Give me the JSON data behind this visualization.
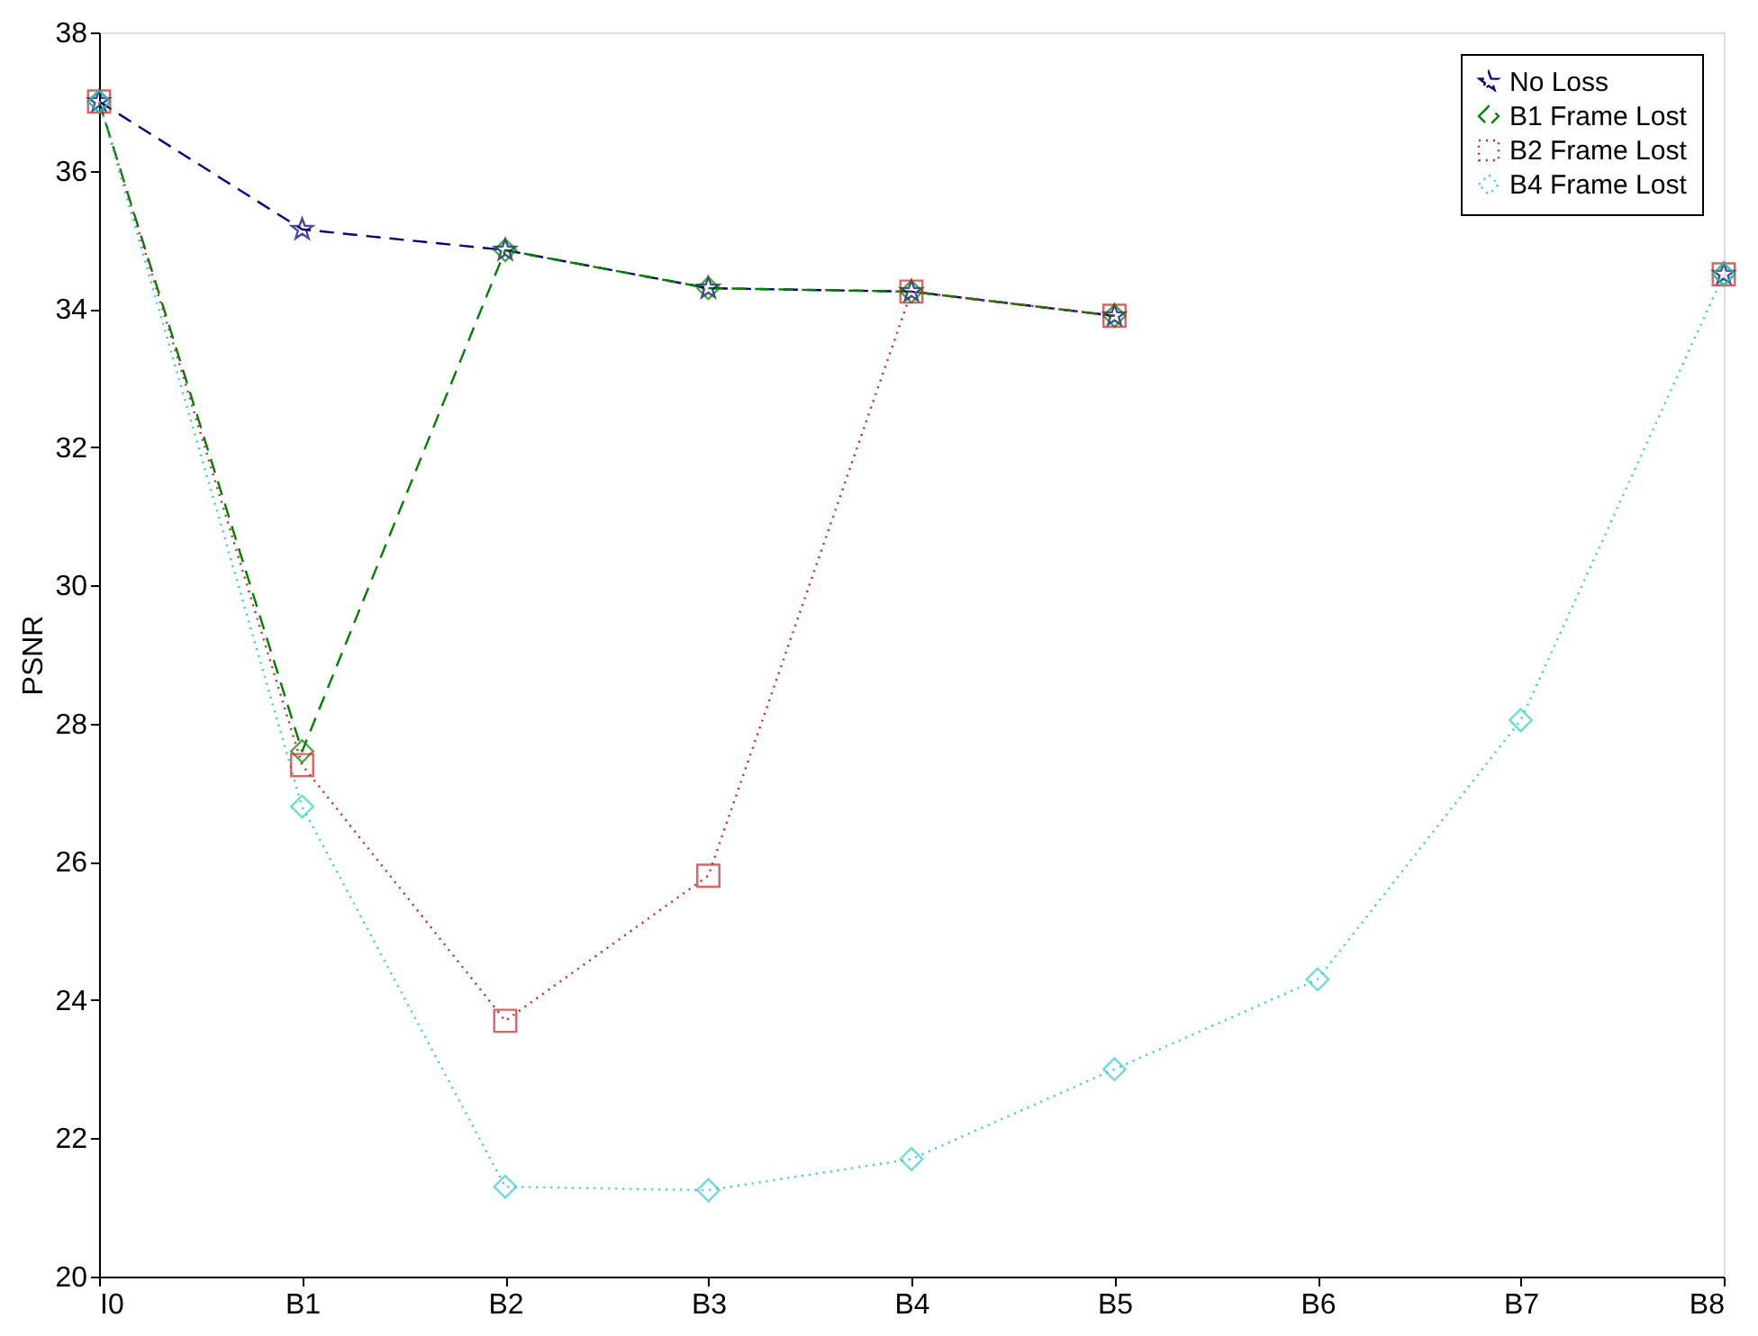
{
  "chart_data": {
    "type": "line",
    "ylabel": "PSNR",
    "categories": [
      "I0",
      "B1",
      "B2",
      "B3",
      "B4",
      "B5",
      "B6",
      "B7",
      "B8"
    ],
    "ylim": [
      20,
      38
    ],
    "yticks": [
      20,
      22,
      24,
      26,
      28,
      30,
      32,
      34,
      36,
      38
    ],
    "grid": false,
    "legend": "top right",
    "series": [
      {
        "name": "No Loss",
        "color": "#000080",
        "marker": "star",
        "line_style": "dashed",
        "values": [
          37.0,
          35.15,
          34.85,
          34.3,
          34.25,
          33.9,
          null,
          null,
          34.5
        ]
      },
      {
        "name": "B1 Frame Lost",
        "color": "#008000",
        "marker": "diamond",
        "line_style": "dashed",
        "values": [
          37.0,
          27.6,
          34.85,
          34.3,
          34.25,
          33.9,
          null,
          null,
          34.5
        ]
      },
      {
        "name": "B2 Frame Lost",
        "color": "#cc2222",
        "marker": "square",
        "line_style": "dotted",
        "values": [
          37.0,
          27.4,
          23.7,
          25.8,
          34.25,
          33.9,
          null,
          null,
          34.5
        ]
      },
      {
        "name": "B4 Frame Lost",
        "color": "#33cccc",
        "marker": "diamond",
        "line_style": "dotted",
        "values": [
          37.0,
          26.8,
          21.3,
          21.25,
          21.7,
          23.0,
          24.3,
          28.05,
          34.5
        ]
      }
    ]
  }
}
